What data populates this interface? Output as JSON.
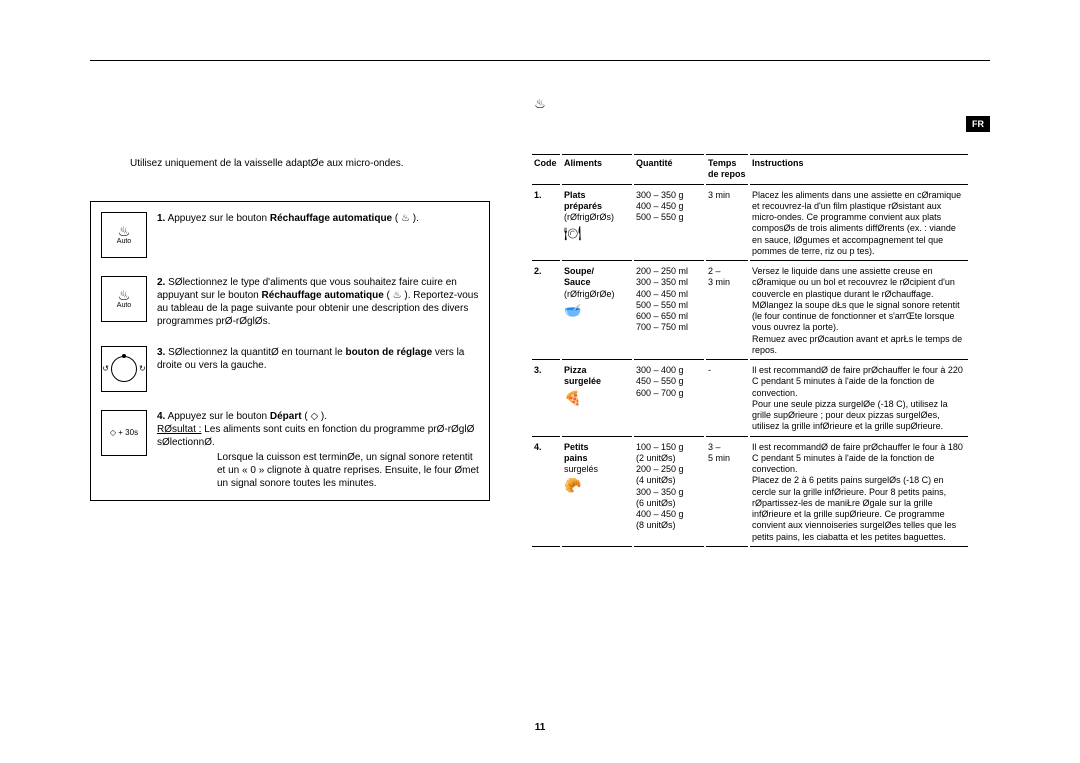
{
  "langTab": "FR",
  "topIcon": "♨",
  "intro": "Utilisez uniquement de la vaisselle adaptØe aux micro-ondes.",
  "steps": [
    {
      "num": "1.",
      "iconGlyph": "♨",
      "iconSub": "Auto",
      "kind": "auto",
      "html": "Appuyez sur le bouton <b>Réchauffage automatique</b> ( ♨ )."
    },
    {
      "num": "2.",
      "iconGlyph": "♨",
      "iconSub": "Auto",
      "kind": "auto",
      "html": "SØlectionnez le type d'aliments que vous souhaitez faire cuire en appuyant sur le bouton <b>Réchauffage automatique</b> ( ♨ ). Reportez-vous au tableau de la page suivante pour obtenir une description des divers programmes prØ-rØglØs."
    },
    {
      "num": "3.",
      "kind": "knob",
      "html": "SØlectionnez la quantitØ en tournant le <b>bouton de réglage</b> vers la droite ou vers la gauche."
    },
    {
      "num": "4.",
      "kind": "start",
      "iconGlyph": "◇ + 30s",
      "html": "Appuyez sur le bouton <b>Départ</b> ( ◇ ).\n<u>RØsultat :</u> Les aliments sont cuits en fonction du programme prØ-rØglØ sØlectionnØ.",
      "sub": "Lorsque la cuisson est terminØe, un signal sonore retentit et un « 0 » clignote à quatre reprises. Ensuite, le four Ømet un signal sonore toutes les minutes."
    }
  ],
  "tableHead": {
    "code": "Code",
    "aliments": "Aliments",
    "quantite": "Quantité",
    "temps": "Temps de repos",
    "instructions": "Instructions"
  },
  "rows": [
    {
      "code": "1.",
      "aliments": "Plats\npréparés\n(rØfrigØrØs)",
      "icon": "🍽",
      "qty": "300 – 350 g\n400 – 450 g\n500 – 550 g",
      "time": "3 min",
      "instr": "Placez les aliments dans une assiette en cØramique et recouvrez-la d'un film plastique rØsistant aux micro-ondes. Ce programme convient aux plats composØs de trois aliments diffØrents (ex. : viande en sauce, lØgumes et accompagnement tel que pommes de terre, riz ou p tes)."
    },
    {
      "code": "2.",
      "aliments": "Soupe/\nSauce\n(rØfrigØrØe)",
      "icon": "🥣",
      "qty": "200 – 250 ml\n300 – 350 ml\n400 – 450 ml\n500 – 550 ml\n600 – 650 ml\n700 – 750 ml",
      "time": "2 –\n3 min",
      "instr": "Versez le liquide dans une assiette creuse en cØramique ou un bol et recouvrez le rØcipient d'un couvercle en plastique durant le rØchauffage. MØlangez la soupe dŁs que le signal sonore retentit (le four continue de fonctionner et s'arrŒte lorsque vous ouvrez la porte).\nRemuez avec prØcaution avant et aprŁs le temps de repos."
    },
    {
      "code": "3.",
      "aliments": "Pizza\nsurgelée",
      "icon": "🍕",
      "qty": "300 – 400 g\n450 – 550 g\n600 – 700 g",
      "time": "-",
      "instr": "Il est recommandØ de faire prØchauffer le four à 220 C pendant 5 minutes à l'aide de la fonction de convection.\nPour une seule pizza surgelØe (-18 C), utilisez la grille supØrieure ; pour deux pizzas surgelØes, utilisez la grille infØrieure et la grille supØrieure."
    },
    {
      "code": "4.",
      "aliments": "Petits\npains\nsurgelés",
      "icon": "🥐",
      "qty": "100 – 150 g\n(2 unitØs)\n200 – 250 g\n(4 unitØs)\n300 – 350 g\n(6 unitØs)\n400 – 450 g\n(8 unitØs)",
      "time": "3 –\n5 min",
      "instr": "Il est recommandØ de faire prØchauffer le four à 180 C pendant 5 minutes à l'aide de la fonction de convection.\nPlacez de 2 à 6 petits pains surgelØs (-18 C) en cercle sur la grille infØrieure. Pour 8 petits pains, rØpartissez-les de maniŁre Øgale sur la grille infØrieure et la grille supØrieure. Ce programme convient aux viennoiseries surgelØes telles que les petits pains, les ciabatta et les petites baguettes."
    }
  ],
  "pageNum": "11"
}
